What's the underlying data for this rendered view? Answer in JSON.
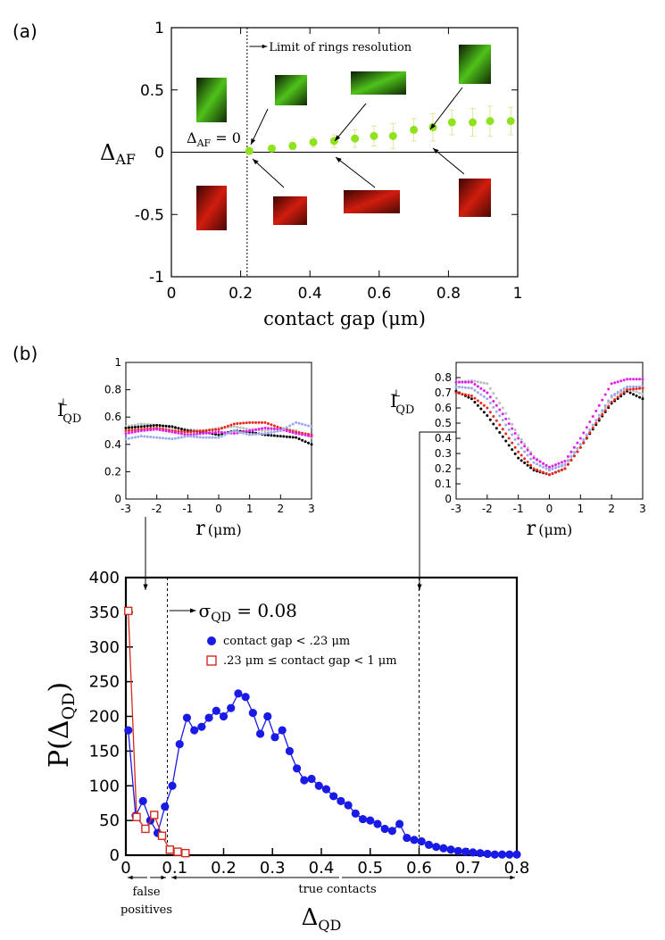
{
  "panel_labels": {
    "a": "(a)",
    "b": "(b)"
  },
  "chart_data": [
    {
      "id": "panel-a",
      "type": "scatter",
      "xlabel": "contact gap",
      "xunit": "(μm)",
      "ylabel_main": "Δ",
      "ylabel_sub": "AF",
      "xlim": [
        0,
        1
      ],
      "ylim": [
        -1,
        1
      ],
      "xticks": [
        0,
        0.2,
        0.4,
        0.6,
        0.8,
        1
      ],
      "xtick_labels": [
        "0",
        "0.2",
        "0.4",
        "0.6",
        "0.8",
        "1"
      ],
      "yticks": [
        -1,
        -0.5,
        0,
        0.5,
        1
      ],
      "ytick_labels": [
        "-1",
        "-0.5",
        "0",
        "0.5",
        "1"
      ],
      "annotation_limit": "Limit of rings resolution",
      "annotation_zero_main": "Δ",
      "annotation_zero_sub": "AF",
      "annotation_zero_rest": " = 0",
      "limit_x": 0.22,
      "color": "#8fe31c",
      "series": [
        {
          "name": "ΔAF",
          "x": [
            0.225,
            0.29,
            0.35,
            0.41,
            0.47,
            0.53,
            0.585,
            0.64,
            0.7,
            0.755,
            0.81,
            0.87,
            0.92,
            0.98
          ],
          "y": [
            0.01,
            0.03,
            0.05,
            0.08,
            0.09,
            0.11,
            0.13,
            0.13,
            0.18,
            0.2,
            0.24,
            0.24,
            0.25,
            0.25
          ],
          "err": [
            0.0,
            0.02,
            0.03,
            0.04,
            0.05,
            0.07,
            0.08,
            0.1,
            0.09,
            0.11,
            0.1,
            0.11,
            0.12,
            0.11
          ]
        }
      ]
    },
    {
      "id": "inset-left",
      "type": "line",
      "ylabel_main": "I",
      "ylabel_sup": "⊥",
      "ylabel_sub": "QD",
      "xlabel": "r",
      "xunit": "(μm)",
      "xlim": [
        -3,
        3
      ],
      "ylim": [
        0,
        1
      ],
      "xticks": [
        -3,
        -2,
        -1,
        0,
        1,
        2,
        3
      ],
      "xtick_labels": [
        "-3",
        "-2",
        "-1",
        "0",
        "1",
        "2",
        "3"
      ],
      "yticks": [
        0,
        0.2,
        0.4,
        0.6,
        0.8,
        1
      ],
      "ytick_labels": [
        "0",
        "0.2",
        "0.4",
        "0.6",
        "0.8",
        "1"
      ],
      "series": [
        {
          "name": "gray",
          "color": "#bdbdbd",
          "x": [
            -3,
            -2.5,
            -2,
            -1.5,
            -1,
            -0.5,
            0,
            0.5,
            1,
            1.5,
            2,
            2.5,
            3
          ],
          "y": [
            0.53,
            0.55,
            0.54,
            0.52,
            0.51,
            0.5,
            0.52,
            0.53,
            0.51,
            0.5,
            0.52,
            0.5,
            0.45
          ]
        },
        {
          "name": "black",
          "color": "#000000",
          "x": [
            -3,
            -2.5,
            -2,
            -1.5,
            -1,
            -0.5,
            0,
            0.5,
            1,
            1.5,
            2,
            2.5,
            3
          ],
          "y": [
            0.52,
            0.53,
            0.54,
            0.53,
            0.5,
            0.49,
            0.47,
            0.5,
            0.49,
            0.47,
            0.46,
            0.45,
            0.4
          ]
        },
        {
          "name": "red",
          "color": "#e8281e",
          "x": [
            -3,
            -2.5,
            -2,
            -1.5,
            -1,
            -0.5,
            0,
            0.5,
            1,
            1.5,
            2,
            2.5,
            3
          ],
          "y": [
            0.5,
            0.51,
            0.52,
            0.5,
            0.49,
            0.5,
            0.51,
            0.55,
            0.56,
            0.56,
            0.52,
            0.49,
            0.47
          ]
        },
        {
          "name": "magenta",
          "color": "#e21ee8",
          "x": [
            -3,
            -2.5,
            -2,
            -1.5,
            -1,
            -0.5,
            0,
            0.5,
            1,
            1.5,
            2,
            2.5,
            3
          ],
          "y": [
            0.48,
            0.5,
            0.51,
            0.49,
            0.47,
            0.48,
            0.49,
            0.48,
            0.5,
            0.52,
            0.51,
            0.48,
            0.46
          ]
        },
        {
          "name": "lightblue",
          "color": "#9aa8f0",
          "x": [
            -3,
            -2.5,
            -2,
            -1.5,
            -1,
            -0.5,
            0,
            0.5,
            1,
            1.5,
            2,
            2.5,
            3
          ],
          "y": [
            0.44,
            0.46,
            0.45,
            0.44,
            0.46,
            0.45,
            0.45,
            0.5,
            0.47,
            0.48,
            0.5,
            0.56,
            0.53
          ]
        }
      ]
    },
    {
      "id": "inset-right",
      "type": "line",
      "ylabel_main": "I",
      "ylabel_sup": "⊥",
      "ylabel_sub": "QD",
      "xlabel": "r",
      "xunit": "(μm)",
      "xlim": [
        -3,
        3
      ],
      "ylim": [
        0,
        0.9
      ],
      "xticks": [
        -3,
        -2,
        -1,
        0,
        1,
        2,
        3
      ],
      "xtick_labels": [
        "-3",
        "-2",
        "-1",
        "0",
        "1",
        "2",
        "3"
      ],
      "yticks": [
        0,
        0.1,
        0.2,
        0.3,
        0.4,
        0.5,
        0.6,
        0.7,
        0.8
      ],
      "ytick_labels": [
        "0",
        "0.1",
        "0.2",
        "0.3",
        "0.4",
        "0.5",
        "0.6",
        "0.7",
        "0.8"
      ],
      "series": [
        {
          "name": "gray",
          "color": "#bdbdbd",
          "x": [
            -3,
            -2.5,
            -2,
            -1.5,
            -1,
            -0.5,
            0,
            0.5,
            1,
            1.5,
            2,
            2.5,
            3
          ],
          "y": [
            0.77,
            0.78,
            0.76,
            0.6,
            0.42,
            0.28,
            0.2,
            0.22,
            0.36,
            0.5,
            0.67,
            0.73,
            0.69
          ]
        },
        {
          "name": "magenta",
          "color": "#e21ee8",
          "x": [
            -3,
            -2.5,
            -2,
            -1.5,
            -1,
            -0.5,
            0,
            0.5,
            1,
            1.5,
            2,
            2.5,
            3
          ],
          "y": [
            0.77,
            0.77,
            0.7,
            0.56,
            0.4,
            0.27,
            0.21,
            0.25,
            0.4,
            0.58,
            0.76,
            0.79,
            0.79
          ]
        },
        {
          "name": "lightblue",
          "color": "#9aa8f0",
          "x": [
            -3,
            -2.5,
            -2,
            -1.5,
            -1,
            -0.5,
            0,
            0.5,
            1,
            1.5,
            2,
            2.5,
            3
          ],
          "y": [
            0.74,
            0.73,
            0.66,
            0.52,
            0.36,
            0.24,
            0.19,
            0.23,
            0.36,
            0.52,
            0.68,
            0.74,
            0.74
          ]
        },
        {
          "name": "black",
          "color": "#000000",
          "x": [
            -3,
            -2.5,
            -2,
            -1.5,
            -1,
            -0.5,
            0,
            0.5,
            1,
            1.5,
            2,
            2.5,
            3
          ],
          "y": [
            0.71,
            0.66,
            0.55,
            0.41,
            0.27,
            0.19,
            0.16,
            0.2,
            0.34,
            0.49,
            0.63,
            0.71,
            0.66
          ]
        },
        {
          "name": "red",
          "color": "#e8281e",
          "x": [
            -3,
            -2.5,
            -2,
            -1.5,
            -1,
            -0.5,
            0,
            0.5,
            1,
            1.5,
            2,
            2.5,
            3
          ],
          "y": [
            0.7,
            0.68,
            0.6,
            0.46,
            0.31,
            0.2,
            0.16,
            0.2,
            0.34,
            0.5,
            0.64,
            0.72,
            0.73
          ]
        }
      ]
    },
    {
      "id": "panel-b-main",
      "type": "line",
      "xlabel_main": "Δ",
      "xlabel_sub": "QD",
      "ylabel_main": "P(Δ",
      "ylabel_sub": "QD",
      "ylabel_end": ")",
      "xlim": [
        0,
        0.8
      ],
      "ylim": [
        0,
        400
      ],
      "xticks": [
        0,
        0.1,
        0.2,
        0.3,
        0.4,
        0.5,
        0.6,
        0.7,
        0.8
      ],
      "xtick_labels": [
        "0",
        "0.1",
        "0.2",
        "0.3",
        "0.4",
        "0.5",
        "0.6",
        "0.7",
        "0.8"
      ],
      "yticks": [
        0,
        50,
        100,
        150,
        200,
        250,
        300,
        350,
        400
      ],
      "ytick_labels": [
        "0",
        "50",
        "100",
        "150",
        "200",
        "250",
        "300",
        "350",
        "400"
      ],
      "sigma_main": "σ",
      "sigma_sub": "QD",
      "sigma_rest": " = 0.08",
      "sigma_x": 0.085,
      "right_dashed_x": 0.6,
      "legend": [
        {
          "text": "contact gap < .23 μm",
          "color": "#1a1ae6",
          "marker": "circle"
        },
        {
          "text": ".23 μm ≤ contact gap < 1 μm",
          "color": "#d42a1e",
          "marker": "square"
        }
      ],
      "false_positives_line1": "false",
      "false_positives_line2": "positives",
      "true_contacts": "true contacts",
      "series": [
        {
          "name": "contact gap < .23 μm",
          "color": "#1a1ae6",
          "x": [
            0.005,
            0.02,
            0.035,
            0.05,
            0.065,
            0.08,
            0.095,
            0.11,
            0.125,
            0.14,
            0.155,
            0.17,
            0.185,
            0.2,
            0.215,
            0.23,
            0.245,
            0.26,
            0.275,
            0.29,
            0.305,
            0.32,
            0.335,
            0.35,
            0.365,
            0.38,
            0.395,
            0.41,
            0.425,
            0.44,
            0.455,
            0.47,
            0.485,
            0.5,
            0.515,
            0.53,
            0.545,
            0.56,
            0.575,
            0.59,
            0.605,
            0.62,
            0.635,
            0.65,
            0.665,
            0.68,
            0.695,
            0.71,
            0.725,
            0.74,
            0.755,
            0.77,
            0.785,
            0.8
          ],
          "y": [
            180,
            57,
            78,
            50,
            32,
            70,
            100,
            160,
            198,
            180,
            185,
            198,
            208,
            200,
            212,
            233,
            228,
            205,
            175,
            200,
            170,
            180,
            150,
            125,
            108,
            110,
            100,
            95,
            85,
            78,
            72,
            60,
            52,
            50,
            45,
            38,
            35,
            45,
            25,
            22,
            20,
            15,
            12,
            10,
            8,
            6,
            5,
            4,
            3,
            2,
            1,
            1,
            1,
            1
          ]
        },
        {
          "name": ".23 μm ≤ contact gap < 1 μm",
          "color": "#d42a1e",
          "x": [
            0.005,
            0.022,
            0.04,
            0.058,
            0.074,
            0.09,
            0.106,
            0.122
          ],
          "y": [
            352,
            55,
            38,
            58,
            28,
            8,
            5,
            3
          ]
        }
      ]
    }
  ]
}
